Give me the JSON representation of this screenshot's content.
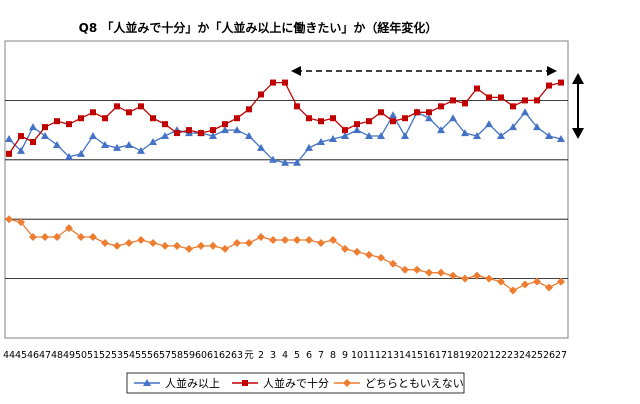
{
  "chart_data": {
    "type": "line",
    "title": "Q8 「人並みで十分」か「人並み以上に働きたい」か（経年変化）",
    "categories": [
      "44",
      "45",
      "46",
      "47",
      "48",
      "49",
      "50",
      "51",
      "52",
      "53",
      "54",
      "55",
      "56",
      "57",
      "58",
      "59",
      "60",
      "61",
      "62",
      "63",
      "元",
      "2",
      "3",
      "4",
      "5",
      "6",
      "7",
      "8",
      "9",
      "10",
      "11",
      "12",
      "13",
      "14",
      "15",
      "16",
      "17",
      "18",
      "19",
      "20",
      "21",
      "22",
      "23",
      "24",
      "25",
      "26",
      "27"
    ],
    "series": [
      {
        "name": "人並み以上",
        "color": "#4472c4",
        "marker": "triangle",
        "values": [
          77,
          73,
          81,
          78,
          75,
          71,
          72,
          78,
          75,
          74,
          75,
          73,
          76,
          78,
          80,
          79,
          79,
          78,
          80,
          80,
          78,
          74,
          70,
          69,
          69,
          74,
          76,
          77,
          78,
          80,
          78,
          78,
          85,
          78,
          86,
          84,
          80,
          84,
          79,
          78,
          82,
          78,
          81,
          86,
          81,
          78,
          77
        ]
      },
      {
        "name": "人並みで十分",
        "color": "#c00000",
        "marker": "square",
        "values": [
          72,
          78,
          76,
          81,
          83,
          82,
          84,
          86,
          84,
          88,
          86,
          88,
          84,
          82,
          79,
          80,
          79,
          80,
          82,
          84,
          87,
          92,
          96,
          96,
          88,
          84,
          83,
          84,
          80,
          82,
          83,
          86,
          83,
          84,
          86,
          86,
          88,
          90,
          89,
          94,
          91,
          91,
          88,
          90,
          90,
          95,
          96
        ]
      },
      {
        "name": "どちらともいえない",
        "color": "#ed7d31",
        "marker": "diamond",
        "values": [
          50,
          49,
          44,
          44,
          44,
          47,
          44,
          44,
          42,
          41,
          42,
          43,
          42,
          41,
          41,
          40,
          41,
          41,
          40,
          42,
          42,
          44,
          43,
          43,
          43,
          43,
          42,
          43,
          40,
          39,
          38,
          37,
          35,
          33,
          33,
          32,
          32,
          31,
          30,
          31,
          30,
          29,
          26,
          28,
          29,
          27,
          29
        ]
      }
    ],
    "ylim": [
      10,
      110
    ],
    "grid": true,
    "legend": "bottom"
  }
}
